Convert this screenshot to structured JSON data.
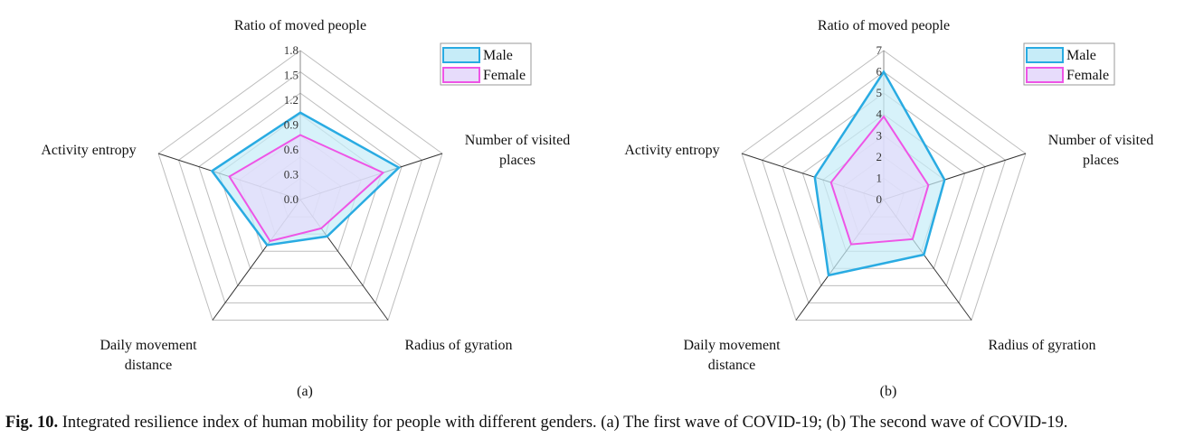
{
  "caption": {
    "label": "Fig. 10.",
    "text": "Integrated resilience index of human mobility for people with different genders. (a) The first wave of COVID-19; (b) The second wave of COVID-19."
  },
  "colors": {
    "male_stroke": "#29abe2",
    "male_fill": "#c6ecf8",
    "female_stroke": "#ee55e6",
    "female_fill": "#e7dcfb",
    "grid": "#bdbdbd",
    "axis": "#333333"
  },
  "chart_data": [
    {
      "type": "radar",
      "panel_label": "(a)",
      "axes": [
        [
          "Ratio of moved people"
        ],
        [
          "Number of visited",
          "places"
        ],
        [
          "Radius of gyration"
        ],
        [
          "Daily movement",
          "distance"
        ],
        [
          "Activity entropy"
        ]
      ],
      "ticks": [
        "0.0",
        "0.3",
        "0.6",
        "0.9",
        "1.2",
        "1.5",
        "1.8"
      ],
      "range": [
        0,
        1.8
      ],
      "grid": true,
      "legend_position": "top-right",
      "series": [
        {
          "name": "Male",
          "values": [
            1.05,
            1.25,
            0.55,
            0.68,
            1.12
          ]
        },
        {
          "name": "Female",
          "values": [
            0.78,
            1.05,
            0.43,
            0.62,
            0.9
          ]
        }
      ]
    },
    {
      "type": "radar",
      "panel_label": "(b)",
      "axes": [
        [
          "Ratio of moved people"
        ],
        [
          "Number of visited",
          "places"
        ],
        [
          "Radius of gyration"
        ],
        [
          "Daily movement",
          "distance"
        ],
        [
          "Activity entropy"
        ]
      ],
      "ticks": [
        "0",
        "1",
        "2",
        "3",
        "4",
        "5",
        "6",
        "7"
      ],
      "range": [
        0,
        7
      ],
      "grid": true,
      "legend_position": "top-right",
      "series": [
        {
          "name": "Male",
          "values": [
            6.0,
            3.0,
            3.2,
            4.4,
            3.4
          ]
        },
        {
          "name": "Female",
          "values": [
            3.9,
            2.2,
            2.3,
            2.6,
            2.6
          ]
        }
      ]
    }
  ]
}
